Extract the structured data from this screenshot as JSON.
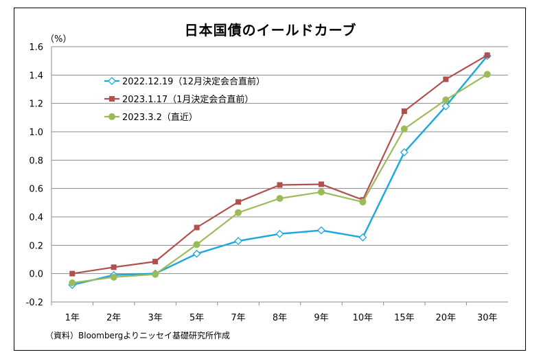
{
  "chart_data": {
    "type": "line",
    "title": "日本国債のイールドカーブ",
    "unit": "（%）",
    "source": "（資料）Bloombergよりニッセイ基礎研究所作成",
    "categories": [
      "1年",
      "2年",
      "3年",
      "5年",
      "7年",
      "8年",
      "9年",
      "10年",
      "15年",
      "20年",
      "30年"
    ],
    "ylim": [
      -0.2,
      1.6
    ],
    "yticks": [
      "-0.2",
      "0.0",
      "0.2",
      "0.4",
      "0.6",
      "0.8",
      "1.0",
      "1.2",
      "1.4",
      "1.6"
    ],
    "grid": true,
    "legend_position": "top-left",
    "series": [
      {
        "name": "2022.12.19（12月決定会合直前）",
        "color": "#1FA8DC",
        "marker": "diamond-open",
        "values": [
          -0.08,
          -0.01,
          0.0,
          0.14,
          0.23,
          0.28,
          0.305,
          0.255,
          0.855,
          1.18,
          1.535
        ]
      },
      {
        "name": "2023.1.17（1月決定会合直前）",
        "color": "#B0504D",
        "marker": "square",
        "values": [
          0.0,
          0.045,
          0.085,
          0.325,
          0.505,
          0.625,
          0.63,
          0.52,
          1.145,
          1.37,
          1.54
        ]
      },
      {
        "name": "2023.3.2（直近）",
        "color": "#9BBB59",
        "marker": "circle",
        "values": [
          -0.065,
          -0.025,
          -0.005,
          0.205,
          0.43,
          0.53,
          0.575,
          0.505,
          1.02,
          1.225,
          1.405
        ]
      }
    ]
  }
}
